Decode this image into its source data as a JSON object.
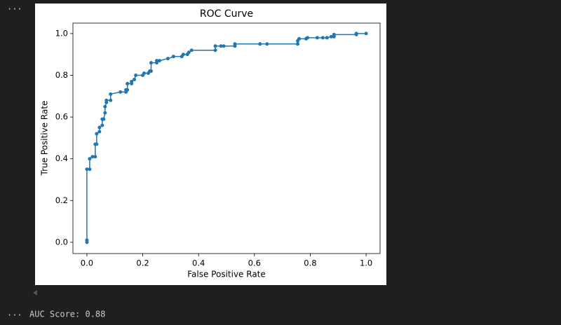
{
  "console": {
    "top_prompt": "...",
    "bottom_prompt": "...",
    "output": "AUC Score: 0.88"
  },
  "chart_data": {
    "type": "line",
    "title": "ROC Curve",
    "x_label": "False Positive Rate",
    "y_label": "True Positive Rate",
    "color": "#1f77b4",
    "markers": true,
    "grid": false,
    "x": [
      0,
      0,
      0,
      0.01,
      0.01,
      0.02,
      0.03,
      0.03,
      0.035,
      0.035,
      0.045,
      0.045,
      0.055,
      0.055,
      0.06,
      0.065,
      0.065,
      0.07,
      0.07,
      0.085,
      0.085,
      0.12,
      0.14,
      0.14,
      0.145,
      0.145,
      0.16,
      0.16,
      0.17,
      0.175,
      0.2,
      0.205,
      0.22,
      0.225,
      0.23,
      0.23,
      0.25,
      0.25,
      0.26,
      0.29,
      0.31,
      0.34,
      0.345,
      0.36,
      0.365,
      0.375,
      0.46,
      0.46,
      0.48,
      0.49,
      0.53,
      0.53,
      0.62,
      0.645,
      0.755,
      0.755,
      0.76,
      0.785,
      0.79,
      0.825,
      0.845,
      0.86,
      0.875,
      0.885,
      0.885,
      0.965,
      0.965,
      1.0
    ],
    "values": [
      0,
      0.01,
      0.35,
      0.35,
      0.4,
      0.41,
      0.41,
      0.47,
      0.47,
      0.52,
      0.53,
      0.55,
      0.56,
      0.59,
      0.59,
      0.62,
      0.65,
      0.67,
      0.68,
      0.68,
      0.71,
      0.72,
      0.72,
      0.73,
      0.73,
      0.76,
      0.76,
      0.77,
      0.78,
      0.8,
      0.8,
      0.81,
      0.81,
      0.82,
      0.82,
      0.86,
      0.86,
      0.87,
      0.87,
      0.88,
      0.89,
      0.89,
      0.9,
      0.9,
      0.91,
      0.92,
      0.92,
      0.94,
      0.94,
      0.94,
      0.94,
      0.95,
      0.95,
      0.95,
      0.95,
      0.965,
      0.975,
      0.975,
      0.98,
      0.98,
      0.98,
      0.98,
      0.985,
      0.985,
      0.995,
      0.995,
      1.0,
      1.0
    ],
    "xlim": [
      -0.05,
      1.05
    ],
    "ylim": [
      -0.054,
      1.05
    ],
    "xticks": [
      {
        "value": 0,
        "label": "0.0"
      },
      0.2,
      0.4,
      0.6,
      0.8,
      {
        "value": 1,
        "label": "1.0"
      }
    ],
    "yticks": [
      {
        "value": 0,
        "label": "0.0"
      },
      0.2,
      0.4,
      0.6,
      0.8,
      {
        "value": 1,
        "label": "1.0"
      }
    ]
  }
}
